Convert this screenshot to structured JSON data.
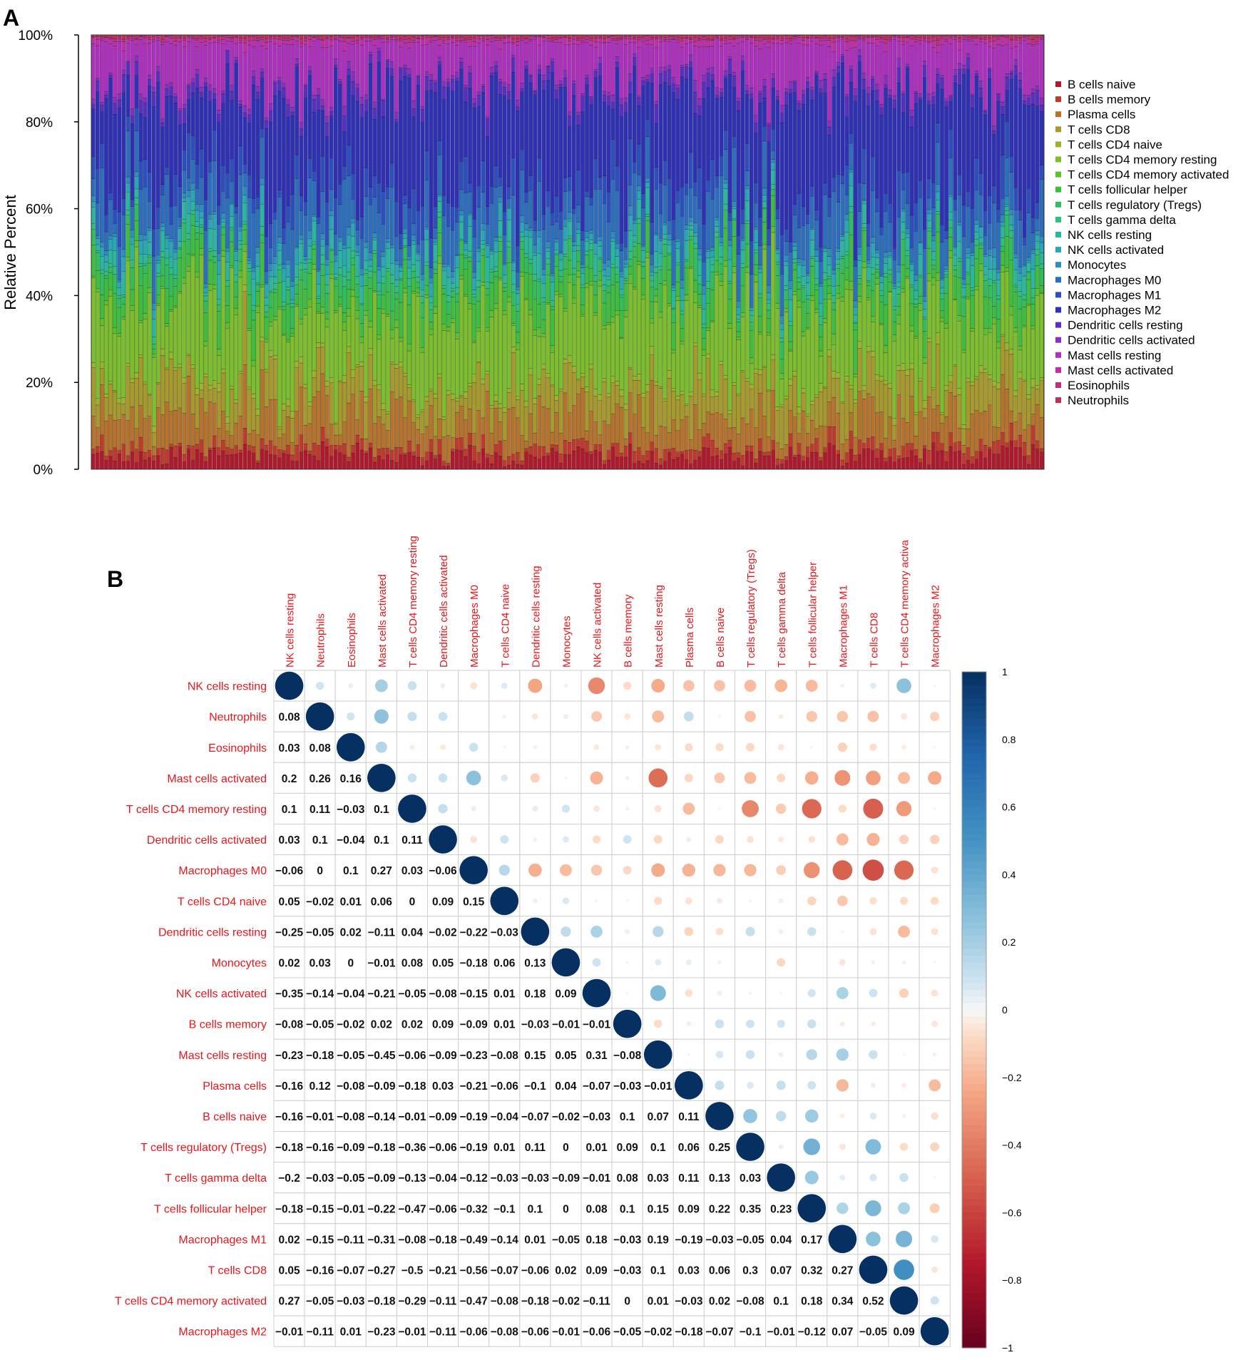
{
  "panel_labels": {
    "a": "A",
    "b": "B"
  },
  "colors": {
    "B cells naive": "#b2182b",
    "B cells memory": "#c0392b",
    "Plasma cells": "#b8732a",
    "T cells CD8": "#a89a2a",
    "T cells CD4 naive": "#9bb52a",
    "T cells CD4 memory resting": "#7bbf2a",
    "T cells CD4 memory activated": "#5cc12a",
    "T cells follicular helper": "#3cbf3c",
    "T cells regulatory (Tregs)": "#2fbf5a",
    "T cells gamma delta": "#2bbf80",
    "NK cells resting": "#27b8a0",
    "NK cells activated": "#27a8b8",
    "Monocytes": "#2a8fc0",
    "Macrophages M0": "#2a6fc0",
    "Macrophages M1": "#2a4fc0",
    "Macrophages M2": "#2e30b8",
    "Dendritic cells resting": "#5a2ec0",
    "Dendritic cells activated": "#8a2ec0",
    "Mast cells resting": "#b02ec0",
    "Mast cells activated": "#c02eaa",
    "Eosinophils": "#c02e80",
    "Neutrophils": "#c02e55"
  },
  "chart_data": [
    {
      "type": "bar",
      "stacked": true,
      "ylabel": "Relative Percent",
      "yticks": [
        "0%",
        "20%",
        "40%",
        "60%",
        "80%",
        "100%"
      ],
      "ylim": [
        0,
        100
      ],
      "n_samples": 220,
      "series_names": [
        "B cells naive",
        "B cells memory",
        "Plasma cells",
        "T cells CD8",
        "T cells CD4 naive",
        "T cells CD4 memory resting",
        "T cells CD4 memory activated",
        "T cells follicular helper",
        "T cells regulatory (Tregs)",
        "T cells gamma delta",
        "NK cells resting",
        "NK cells activated",
        "Monocytes",
        "Macrophages M0",
        "Macrophages M1",
        "Macrophages M2",
        "Dendritic cells resting",
        "Dendritic cells activated",
        "Mast cells resting",
        "Mast cells activated",
        "Eosinophils",
        "Neutrophils"
      ],
      "mean_fractions": [
        0.03,
        0.02,
        0.07,
        0.07,
        0.01,
        0.17,
        0.01,
        0.05,
        0.03,
        0.01,
        0.03,
        0.02,
        0.01,
        0.08,
        0.05,
        0.2,
        0.02,
        0.01,
        0.09,
        0.01,
        0.005,
        0.005
      ],
      "legend": [
        "B cells naive",
        "B cells memory",
        "Plasma cells",
        "T cells CD8",
        "T cells CD4 naive",
        "T cells CD4 memory resting",
        "T cells CD4 memory activated",
        "T cells follicular helper",
        "T cells regulatory (Tregs)",
        "T cells gamma delta",
        "NK cells resting",
        "NK cells activated",
        "Monocytes",
        "Macrophages M0",
        "Macrophages M1",
        "Macrophages M2",
        "Dendritic cells resting",
        "Dendritic cells activated",
        "Mast cells resting",
        "Mast cells activated",
        "Eosinophils",
        "Neutrophils"
      ],
      "legend_position": "right"
    },
    {
      "type": "heatmap",
      "style": "corrplot-mixed",
      "column_labels": [
        "NK cells resting",
        "Neutrophils",
        "Eosinophils",
        "Mast cells activated",
        "T cells CD4 memory resting",
        "Dendritic cells activated",
        "Macrophages M0",
        "T cells CD4 naive",
        "Dendritic cells resting",
        "Monocytes",
        "NK cells activated",
        "B cells memory",
        "Mast cells resting",
        "Plasma cells",
        "B cells naive",
        "T cells regulatory (Tregs)",
        "T cells gamma delta",
        "T cells follicular helper",
        "Macrophages M1",
        "T cells CD8",
        "T cells CD4 memory activa",
        "Macrophages M2"
      ],
      "row_labels": [
        "NK cells resting",
        "Neutrophils",
        "Eosinophils",
        "Mast cells activated",
        "T cells CD4 memory resting",
        "Dendritic cells activated",
        "Macrophages M0",
        "T cells CD4 naive",
        "Dendritic cells resting",
        "Monocytes",
        "NK cells activated",
        "B cells memory",
        "Mast cells resting",
        "Plasma cells",
        "B cells naive",
        "T cells regulatory (Tregs)",
        "T cells gamma delta",
        "T cells follicular helper",
        "Macrophages M1",
        "T cells CD8",
        "T cells CD4 memory activated",
        "Macrophages M2"
      ],
      "lower_triangle_text": [
        [],
        [
          "0.08"
        ],
        [
          "0.03",
          "0.08"
        ],
        [
          "0.2",
          "0.26",
          "0.16"
        ],
        [
          "0.1",
          "0.11",
          "−0.03",
          "0.1"
        ],
        [
          "0.03",
          "0.1",
          "−0.04",
          "0.1",
          "0.11"
        ],
        [
          "−0.06",
          "0",
          "0.1",
          "0.27",
          "0.03",
          "−0.06"
        ],
        [
          "0.05",
          "−0.02",
          "0.01",
          "0.06",
          "0",
          "0.09",
          "0.15"
        ],
        [
          "−0.25",
          "−0.05",
          "0.02",
          "−0.11",
          "0.04",
          "−0.02",
          "−0.22",
          "−0.03"
        ],
        [
          "0.02",
          "0.03",
          "0",
          "−0.01",
          "0.08",
          "0.05",
          "−0.18",
          "0.06",
          "0.13"
        ],
        [
          "−0.35",
          "−0.14",
          "−0.04",
          "−0.21",
          "−0.05",
          "−0.08",
          "−0.15",
          "0.01",
          "0.18",
          "0.09"
        ],
        [
          "−0.08",
          "−0.05",
          "−0.02",
          "0.02",
          "0.02",
          "0.09",
          "−0.09",
          "0.01",
          "−0.03",
          "−0.01",
          "−0.01"
        ],
        [
          "−0.23",
          "−0.18",
          "−0.05",
          "−0.45",
          "−0.06",
          "−0.09",
          "−0.23",
          "−0.08",
          "0.15",
          "0.05",
          "0.31",
          "−0.08"
        ],
        [
          "−0.16",
          "0.12",
          "−0.08",
          "−0.09",
          "−0.18",
          "0.03",
          "−0.21",
          "−0.06",
          "−0.1",
          "0.04",
          "−0.07",
          "−0.03",
          "−0.01"
        ],
        [
          "−0.16",
          "−0.01",
          "−0.08",
          "−0.14",
          "−0.01",
          "−0.09",
          "−0.19",
          "−0.04",
          "−0.07",
          "−0.02",
          "−0.03",
          "0.1",
          "0.07",
          "0.11"
        ],
        [
          "−0.18",
          "−0.16",
          "−0.09",
          "−0.18",
          "−0.36",
          "−0.06",
          "−0.19",
          "0.01",
          "0.11",
          "0",
          "0.01",
          "0.09",
          "0.1",
          "0.06",
          "0.25"
        ],
        [
          "−0.2",
          "−0.03",
          "−0.05",
          "−0.09",
          "−0.13",
          "−0.04",
          "−0.12",
          "−0.03",
          "−0.03",
          "−0.09",
          "−0.01",
          "0.08",
          "0.03",
          "0.11",
          "0.13",
          "0.03"
        ],
        [
          "−0.18",
          "−0.15",
          "−0.01",
          "−0.22",
          "−0.47",
          "−0.06",
          "−0.32",
          "−0.1",
          "0.1",
          "0",
          "0.08",
          "0.1",
          "0.15",
          "0.09",
          "0.22",
          "0.35",
          "0.23"
        ],
        [
          "0.02",
          "−0.15",
          "−0.11",
          "−0.31",
          "−0.08",
          "−0.18",
          "−0.49",
          "−0.14",
          "0.01",
          "−0.05",
          "0.18",
          "−0.03",
          "0.19",
          "−0.19",
          "−0.03",
          "−0.05",
          "0.04",
          "0.17"
        ],
        [
          "0.05",
          "−0.16",
          "−0.07",
          "−0.27",
          "−0.5",
          "−0.21",
          "−0.56",
          "−0.07",
          "−0.06",
          "0.02",
          "0.09",
          "−0.03",
          "0.1",
          "0.03",
          "0.06",
          "0.3",
          "0.07",
          "0.32",
          "0.27"
        ],
        [
          "0.27",
          "−0.05",
          "−0.03",
          "−0.18",
          "−0.29",
          "−0.11",
          "−0.47",
          "−0.08",
          "−0.18",
          "−0.02",
          "−0.11",
          "0",
          "0.01",
          "−0.03",
          "0.02",
          "−0.08",
          "0.1",
          "0.18",
          "0.34",
          "0.52"
        ],
        [
          "−0.01",
          "−0.11",
          "0.01",
          "−0.23",
          "−0.01",
          "−0.11",
          "−0.06",
          "−0.08",
          "−0.06",
          "−0.01",
          "−0.06",
          "−0.05",
          "−0.02",
          "−0.18",
          "−0.07",
          "−0.1",
          "−0.01",
          "−0.12",
          "0.07",
          "−0.05",
          "0.09"
        ]
      ],
      "colorbar_ticks": [
        "1",
        "0.8",
        "0.6",
        "0.4",
        "0.2",
        "0",
        "−0.2",
        "−0.4",
        "−0.6",
        "−0.8",
        "−1"
      ],
      "colorbar_range": [
        -1,
        1
      ]
    }
  ]
}
